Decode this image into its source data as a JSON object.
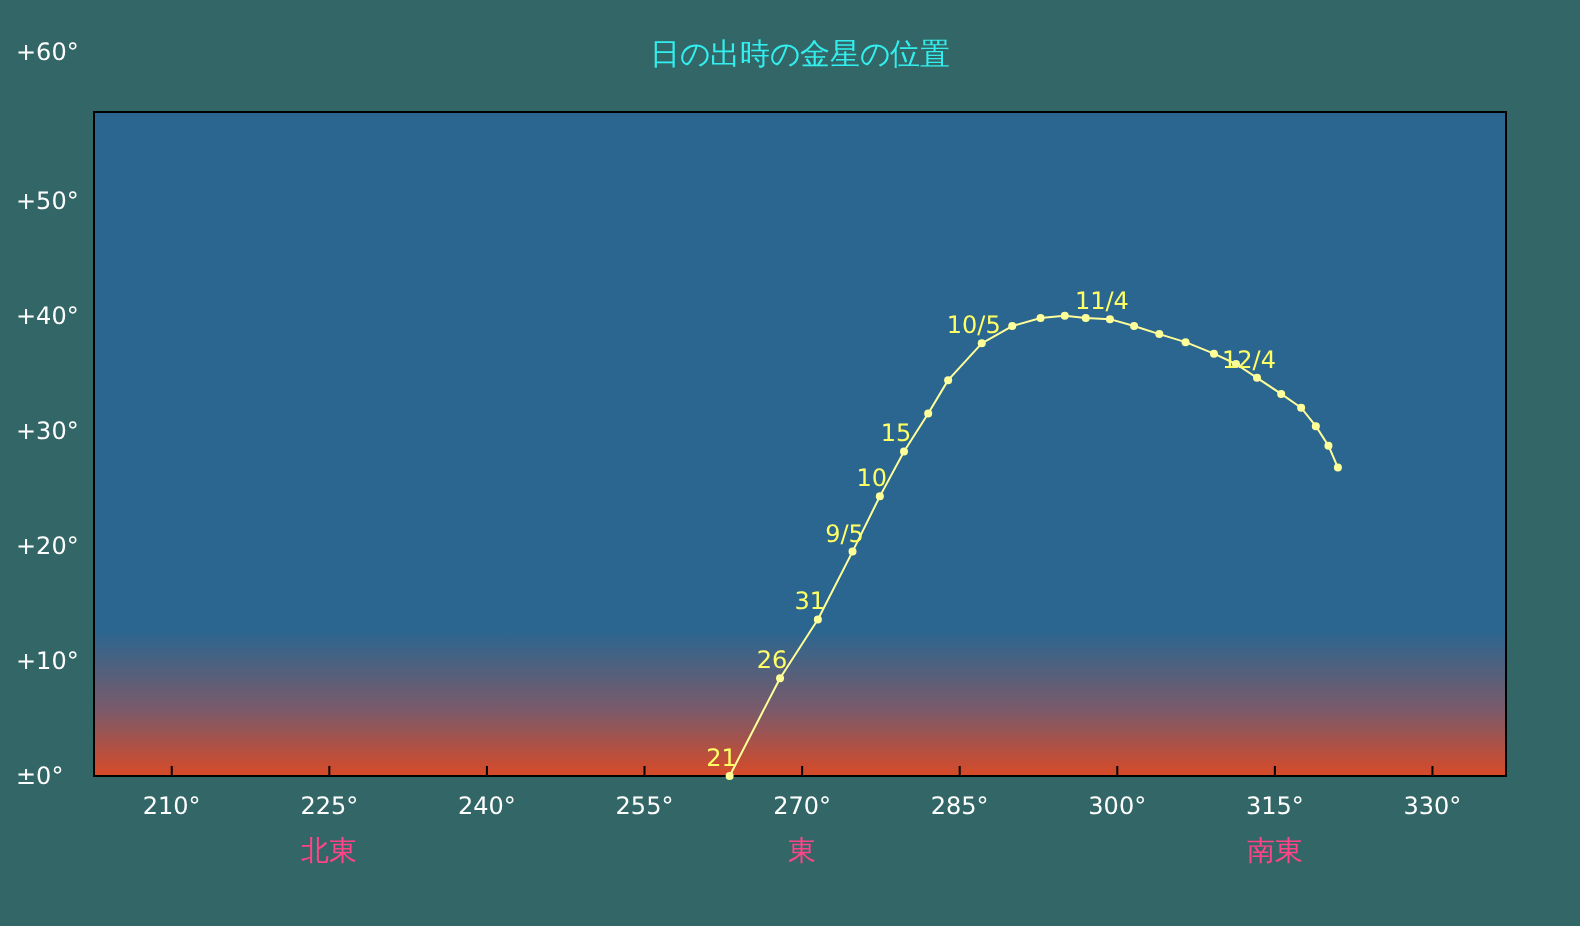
{
  "chart_data": {
    "type": "line",
    "title": "日の出時の金星の位置",
    "x": [
      263.1,
      267.9,
      271.5,
      274.8,
      277.4,
      279.7,
      282.0,
      283.9,
      287.1,
      290.0,
      292.7,
      295.0,
      297.0,
      299.3,
      301.6,
      304.0,
      306.5,
      309.2,
      311.3,
      313.3,
      315.6,
      317.5,
      318.9,
      320.1,
      321.0
    ],
    "series": [
      {
        "color": "#ffff99",
        "values": [
          0,
          8.5,
          13.6,
          19.5,
          24.3,
          28.2,
          31.5,
          34.4,
          37.6,
          39.1,
          39.8,
          40.0,
          39.8,
          39.7,
          39.1,
          38.4,
          37.7,
          36.7,
          35.8,
          34.6,
          33.2,
          32.0,
          30.4,
          28.7,
          26.8
        ]
      }
    ],
    "marker": "circle",
    "xlim": [
      202.6,
      337.0
    ],
    "ylim": [
      0,
      57.7
    ],
    "xticks": [
      {
        "value": 210,
        "label": "210°"
      },
      {
        "value": 225,
        "label": "225°\n北東"
      },
      {
        "value": 240,
        "label": "240°"
      },
      {
        "value": 255,
        "label": "255°"
      },
      {
        "value": 270,
        "label": "270°\n東"
      },
      {
        "value": 285,
        "label": "285°"
      },
      {
        "value": 300,
        "label": "300°"
      },
      {
        "value": 315,
        "label": "315°\n南東"
      },
      {
        "value": 330,
        "label": "330°"
      }
    ],
    "yticks": [
      {
        "value": 0,
        "label": "±0°"
      },
      {
        "value": 10,
        "label": "+10°"
      },
      {
        "value": 20,
        "label": "+20°"
      },
      {
        "value": 30,
        "label": "+30°"
      },
      {
        "value": 40,
        "label": "+40°"
      },
      {
        "value": 50,
        "label": "+50°"
      }
    ],
    "annotations": [
      {
        "text": "21",
        "x": 263.1,
        "y": 0
      },
      {
        "text": "26",
        "x": 267.9,
        "y": 8.5
      },
      {
        "text": "31",
        "x": 271.5,
        "y": 13.6
      },
      {
        "text": "9/5",
        "x": 274.8,
        "y": 19.5
      },
      {
        "text": "10",
        "x": 277.4,
        "y": 24.3
      },
      {
        "text": "15",
        "x": 279.7,
        "y": 28.2
      },
      {
        "text": "10/5",
        "x": 287.1,
        "y": 37.6
      },
      {
        "text": "11/4",
        "x": 299.3,
        "y": 39.7
      },
      {
        "text": "12/4",
        "x": 313.3,
        "y": 34.6
      },
      "+60°"
    ]
  }
}
